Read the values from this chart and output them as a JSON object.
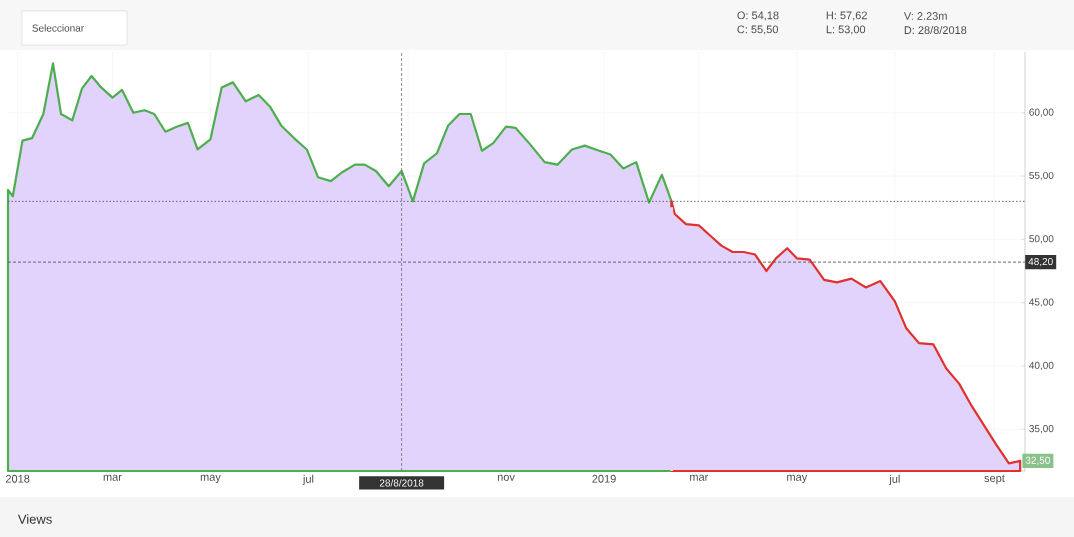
{
  "chart_data": {
    "type": "area",
    "series": [
      {
        "color": "#4cae4f",
        "x": [
          "2017-12-26",
          "2017-12-29",
          "2018-01-04",
          "2018-01-10",
          "2018-01-17",
          "2018-01-23",
          "2018-01-28",
          "2018-02-04",
          "2018-02-10",
          "2018-02-16",
          "2018-02-22",
          "2018-03-01",
          "2018-03-07",
          "2018-03-14",
          "2018-03-21",
          "2018-03-27",
          "2018-04-03",
          "2018-04-10",
          "2018-04-17",
          "2018-04-23",
          "2018-05-01",
          "2018-05-08",
          "2018-05-15",
          "2018-05-23",
          "2018-05-31",
          "2018-06-07",
          "2018-06-14",
          "2018-06-22",
          "2018-06-30",
          "2018-07-07",
          "2018-07-15",
          "2018-07-22",
          "2018-07-30",
          "2018-08-05",
          "2018-08-12",
          "2018-08-20",
          "2018-08-28",
          "2018-09-04",
          "2018-09-11",
          "2018-09-19",
          "2018-09-26",
          "2018-10-03",
          "2018-10-10",
          "2018-10-17",
          "2018-10-24",
          "2018-11-01",
          "2018-11-07",
          "2018-11-16",
          "2018-11-25",
          "2018-12-03",
          "2018-12-12",
          "2018-12-20",
          "2018-12-29",
          "2019-01-05",
          "2019-01-13",
          "2019-01-21",
          "2019-01-29",
          "2019-02-06",
          "2019-02-12"
        ],
        "values": [
          53.9,
          53.4,
          57.8,
          58.0,
          59.9,
          63.9,
          59.9,
          59.4,
          61.9,
          62.9,
          62.0,
          61.2,
          61.8,
          60.0,
          60.2,
          59.9,
          58.5,
          58.9,
          59.2,
          57.1,
          57.9,
          62.0,
          62.4,
          60.9,
          61.4,
          60.5,
          59.0,
          58.0,
          57.1,
          54.9,
          54.6,
          55.3,
          55.9,
          55.9,
          55.4,
          54.2,
          55.4,
          53.0,
          56.0,
          56.8,
          59.0,
          59.9,
          59.9,
          57.0,
          57.6,
          58.9,
          58.8,
          57.5,
          56.1,
          55.9,
          57.1,
          57.4,
          57.0,
          56.7,
          55.6,
          56.1,
          52.9,
          55.1,
          53.0
        ]
      },
      {
        "color": "#e0312e",
        "x": [
          "2019-02-12",
          "2019-02-14",
          "2019-02-21",
          "2019-03-01",
          "2019-03-08",
          "2019-03-15",
          "2019-03-22",
          "2019-03-29",
          "2019-04-05",
          "2019-04-12",
          "2019-04-18",
          "2019-04-25",
          "2019-05-01",
          "2019-05-09",
          "2019-05-18",
          "2019-05-26",
          "2019-06-04",
          "2019-06-13",
          "2019-06-22",
          "2019-07-01",
          "2019-07-08",
          "2019-07-16",
          "2019-07-25",
          "2019-08-02",
          "2019-08-10",
          "2019-08-18",
          "2019-08-26",
          "2019-09-02",
          "2019-09-10",
          "2019-09-17"
        ],
        "values": [
          53.0,
          52.0,
          51.2,
          51.1,
          50.3,
          49.5,
          49.0,
          49.0,
          48.8,
          47.5,
          48.5,
          49.3,
          48.5,
          48.4,
          46.8,
          46.6,
          46.9,
          46.2,
          46.7,
          45.1,
          43.0,
          41.8,
          41.7,
          39.8,
          38.6,
          36.8,
          35.2,
          33.8,
          32.3,
          32.5
        ]
      }
    ],
    "xlim": [
      "2017-12-26",
      "2019-09-20"
    ],
    "xticks": [
      {
        "value": "2018-01-01",
        "label": "2018"
      },
      {
        "value": "2018-03-01",
        "label": "mar"
      },
      {
        "value": "2018-05-01",
        "label": "may"
      },
      {
        "value": "2018-07-01",
        "label": "jul"
      },
      {
        "value": "2018-09-01",
        "label": null
      },
      {
        "value": "2018-11-01",
        "label": "nov"
      },
      {
        "value": "2019-01-01",
        "label": "2019"
      },
      {
        "value": "2019-03-01",
        "label": "mar"
      },
      {
        "value": "2019-05-01",
        "label": "may"
      },
      {
        "value": "2019-07-01",
        "label": "jul"
      },
      {
        "value": "2019-09-01",
        "label": "sept"
      }
    ],
    "ylim": [
      31.7,
      64.8
    ],
    "yticks": [
      {
        "value": 35,
        "label": "35,00"
      },
      {
        "value": 40,
        "label": "40,00"
      },
      {
        "value": 45,
        "label": "45,00"
      },
      {
        "value": 50,
        "label": "50,00"
      },
      {
        "value": 55,
        "label": "55,00"
      },
      {
        "value": 60,
        "label": "60,00"
      }
    ],
    "grid": true,
    "ref_lines": [
      {
        "axis": "y",
        "value": 53,
        "label": null,
        "line_style": "dotted"
      },
      {
        "axis": "y",
        "value": 48.2,
        "label": "48,20",
        "line_style": "dashed"
      },
      {
        "axis": "x",
        "value": "2018-08-28",
        "label": "28/8/2018",
        "line_style": "dashed"
      }
    ],
    "annotations": [
      "O: 54,18",
      "C: 55,50",
      "H: 57,62",
      "L: 53,00",
      "V: 2.23m",
      "D: 28/8/2018",
      "Seleccionar",
      "Views",
      {
        "text": "32,50",
        "x": "2019-09-17",
        "y": 32.5
      }
    ]
  }
}
